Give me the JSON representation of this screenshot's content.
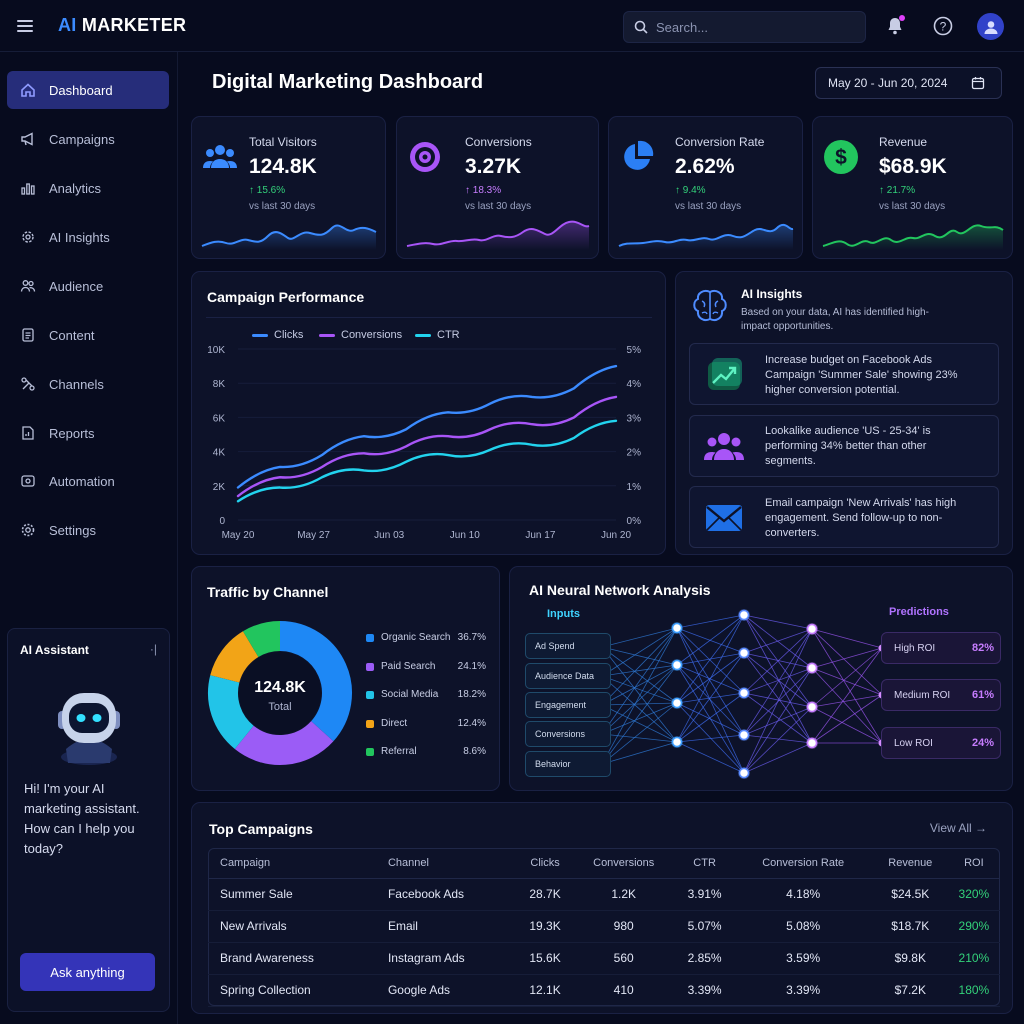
{
  "app": {
    "brand_ai": "AI",
    "brand_rest": "MARKETER",
    "search_placeholder": "Search...",
    "colors": {
      "accent": "#3b8bff",
      "purple": "#a855f7",
      "cyan": "#22d3ee",
      "green": "#22c55e",
      "active_nav": "#262d7a"
    }
  },
  "sidebar": {
    "items": [
      {
        "label": "Dashboard",
        "icon": "home-icon",
        "active": true
      },
      {
        "label": "Campaigns",
        "icon": "megaphone-icon"
      },
      {
        "label": "Analytics",
        "icon": "bar-chart-icon"
      },
      {
        "label": "AI Insights",
        "icon": "gear-chip-icon"
      },
      {
        "label": "Audience",
        "icon": "users-icon"
      },
      {
        "label": "Content",
        "icon": "document-icon"
      },
      {
        "label": "Channels",
        "icon": "channels-icon"
      },
      {
        "label": "Reports",
        "icon": "report-icon"
      },
      {
        "label": "Automation",
        "icon": "automation-icon"
      },
      {
        "label": "Settings",
        "icon": "settings-icon"
      }
    ]
  },
  "assistant": {
    "title": "AI Assistant",
    "collapse": "·|",
    "message": "Hi! I'm your AI marketing assistant. How can I help you today?",
    "button": "Ask anything"
  },
  "header": {
    "title": "Digital Marketing Dashboard",
    "date_range": "May 20 - Jun 20, 2024"
  },
  "kpis": [
    {
      "label": "Total Visitors",
      "value": "124.8K",
      "change": "↑ 15.6%",
      "sub": "vs last 30 days",
      "color": "#3b8bff"
    },
    {
      "label": "Conversions",
      "value": "3.27K",
      "change": "↑ 18.3%",
      "sub": "vs last 30 days",
      "color": "#a855f7"
    },
    {
      "label": "Conversion Rate",
      "value": "2.62%",
      "change": "↑ 9.4%",
      "sub": "vs last 30 days",
      "color": "#3b8bff"
    },
    {
      "label": "Revenue",
      "value": "$68.9K",
      "change": "↑ 21.7%",
      "sub": "vs last 30 days",
      "color": "#22c55e"
    }
  ],
  "campaign_performance": {
    "title": "Campaign Performance",
    "legend": [
      "Clicks",
      "Conversions",
      "CTR"
    ],
    "y_left_ticks": [
      "10K",
      "8K",
      "6K",
      "4K",
      "2K",
      "0"
    ],
    "y_right_ticks": [
      "5%",
      "4%",
      "3%",
      "2%",
      "1%",
      "0%"
    ],
    "x_ticks": [
      "May 20",
      "May 27",
      "Jun 03",
      "Jun 10",
      "Jun 17",
      "Jun 20"
    ]
  },
  "chart_data": {
    "type": "line",
    "x": [
      "May 20",
      "May 24",
      "May 27",
      "May 31",
      "Jun 03",
      "Jun 07",
      "Jun 10",
      "Jun 14",
      "Jun 17",
      "Jun 20"
    ],
    "series": [
      {
        "name": "Clicks",
        "color": "#3b8bff",
        "values": [
          1900,
          3100,
          3800,
          4900,
          5300,
          6300,
          6800,
          7200,
          7700,
          9000
        ]
      },
      {
        "name": "Conversions",
        "color": "#a855f7",
        "values": [
          1400,
          2500,
          3100,
          3900,
          4300,
          4900,
          5300,
          5600,
          6000,
          7200
        ]
      },
      {
        "name": "CTR",
        "color": "#22d3ee",
        "values": [
          1100,
          1900,
          2500,
          2900,
          3400,
          3800,
          4100,
          4400,
          4800,
          5800
        ]
      }
    ],
    "ylim": [
      0,
      10000
    ],
    "y2lim": [
      0,
      5
    ]
  },
  "ai_insights": {
    "title": "AI Insights",
    "subtitle": "Based on your data, AI has identified high-impact opportunities.",
    "items": [
      {
        "icon": "trend-up-icon",
        "text": "Increase budget on Facebook Ads Campaign 'Summer Sale' showing 23% higher conversion potential."
      },
      {
        "icon": "audience-icon",
        "text": "Lookalike audience 'US - 25-34' is performing 34% better than other segments."
      },
      {
        "icon": "mail-icon",
        "text": "Email campaign 'New Arrivals' has high engagement. Send follow-up to non-converters."
      }
    ]
  },
  "traffic": {
    "title": "Traffic by Channel",
    "total_value": "124.8K",
    "total_label": "Total",
    "channels": [
      {
        "name": "Organic Search",
        "pct": "36.7%",
        "value": 36.7,
        "color": "#1e88f5"
      },
      {
        "name": "Paid Search",
        "pct": "24.1%",
        "value": 24.1,
        "color": "#9b5cf6"
      },
      {
        "name": "Social Media",
        "pct": "18.2%",
        "value": 18.2,
        "color": "#22c4e8"
      },
      {
        "name": "Direct",
        "pct": "12.4%",
        "value": 12.4,
        "color": "#f2a417"
      },
      {
        "name": "Referral",
        "pct": "8.6%",
        "value": 8.6,
        "color": "#22c55e"
      }
    ]
  },
  "neural": {
    "title": "AI Neural Network Analysis",
    "inputs_label": "Inputs",
    "predictions_label": "Predictions",
    "inputs": [
      "Ad Spend",
      "Audience Data",
      "Engagement",
      "Conversions",
      "Behavior"
    ],
    "predictions": [
      {
        "label": "High ROI",
        "value": "82%"
      },
      {
        "label": "Medium ROI",
        "value": "61%"
      },
      {
        "label": "Low ROI",
        "value": "24%"
      }
    ]
  },
  "top_campaigns": {
    "title": "Top Campaigns",
    "view_all": "View All →",
    "columns": [
      "Campaign",
      "Channel",
      "Clicks",
      "Conversions",
      "CTR",
      "Conversion Rate",
      "Revenue",
      "ROI"
    ],
    "rows": [
      [
        "Summer Sale",
        "Facebook Ads",
        "28.7K",
        "1.2K",
        "3.91%",
        "4.18%",
        "$24.5K",
        "320%"
      ],
      [
        "New Arrivals",
        "Email",
        "19.3K",
        "980",
        "5.07%",
        "5.08%",
        "$18.7K",
        "290%"
      ],
      [
        "Brand Awareness",
        "Instagram Ads",
        "15.6K",
        "560",
        "2.85%",
        "3.59%",
        "$9.8K",
        "210%"
      ],
      [
        "Spring Collection",
        "Google Ads",
        "12.1K",
        "410",
        "3.39%",
        "3.39%",
        "$7.2K",
        "180%"
      ]
    ]
  }
}
